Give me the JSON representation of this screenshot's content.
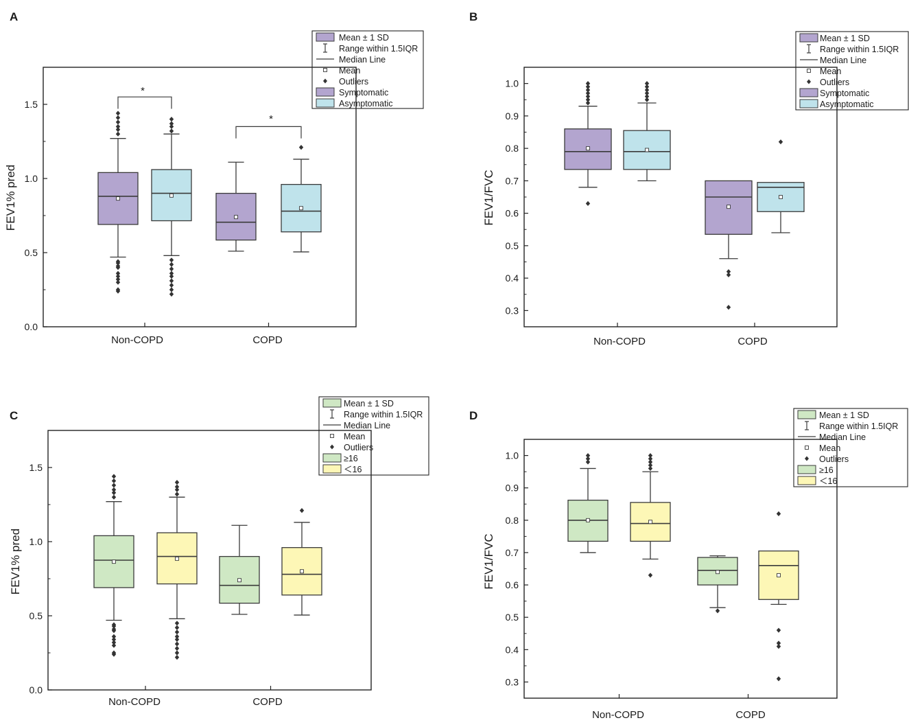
{
  "colors": {
    "symptomatic": "#b3a5cf",
    "asymptomatic": "#bfe3eb",
    "ge16": "#cfe8c4",
    "lt16": "#fdf7b6",
    "stroke": "#3a3a3a"
  },
  "chart_data": [
    {
      "panel": "A",
      "type": "box",
      "ylabel": "FEV1% pred",
      "xlabel": "",
      "categories": [
        "Non-COPD",
        "COPD"
      ],
      "ylim": [
        0,
        1.75
      ],
      "yticks": [
        0.0,
        0.5,
        1.0,
        1.5
      ],
      "ytick_labels": [
        "0.0",
        "0.5",
        "1.0",
        "1.5"
      ],
      "legend_items": [
        {
          "label": "Mean ± 1 SD",
          "kind": "box-neutral"
        },
        {
          "label": "Range within 1.5IQR",
          "kind": "whisker"
        },
        {
          "label": "Median Line",
          "kind": "line"
        },
        {
          "label": "Mean",
          "kind": "mean"
        },
        {
          "label": "Outliers",
          "kind": "outlier"
        },
        {
          "label": "Symptomatic",
          "kind": "color",
          "color": "#b3a5cf"
        },
        {
          "label": "Asymptomatic",
          "kind": "color",
          "color": "#bfe3eb"
        }
      ],
      "legend_tint": "#b3a5cf",
      "series": [
        {
          "name": "Symptomatic",
          "color": "#b3a5cf",
          "boxes": [
            {
              "q1": 0.69,
              "median": 0.88,
              "q3": 1.04,
              "wlo": 0.47,
              "whi": 1.27,
              "mean": 0.865,
              "outliers": [
                0.24,
                0.25,
                0.3,
                0.32,
                0.34,
                0.36,
                0.4,
                0.41,
                0.43,
                0.44,
                1.3,
                1.33,
                1.35,
                1.38,
                1.41,
                1.44
              ]
            },
            {
              "q1": 0.585,
              "median": 0.705,
              "q3": 0.9,
              "wlo": 0.51,
              "whi": 1.11,
              "mean": 0.74,
              "outliers": []
            }
          ]
        },
        {
          "name": "Asymptomatic",
          "color": "#bfe3eb",
          "boxes": [
            {
              "q1": 0.715,
              "median": 0.9,
              "q3": 1.06,
              "wlo": 0.48,
              "whi": 1.3,
              "mean": 0.885,
              "outliers": [
                0.22,
                0.25,
                0.28,
                0.31,
                0.34,
                0.36,
                0.39,
                0.42,
                0.45,
                1.32,
                1.35,
                1.37,
                1.4
              ]
            },
            {
              "q1": 0.64,
              "median": 0.78,
              "q3": 0.96,
              "wlo": 0.505,
              "whi": 1.13,
              "mean": 0.8,
              "outliers": [
                1.21
              ]
            }
          ]
        }
      ],
      "annotations": [
        {
          "text": "*",
          "category": 0
        },
        {
          "text": "*",
          "category": 1
        }
      ]
    },
    {
      "panel": "B",
      "type": "box",
      "ylabel": "FEV1/FVC",
      "xlabel": "",
      "categories": [
        "Non-COPD",
        "COPD"
      ],
      "ylim": [
        0.25,
        1.05
      ],
      "yticks": [
        0.3,
        0.4,
        0.5,
        0.6,
        0.7,
        0.8,
        0.9,
        1.0
      ],
      "ytick_labels": [
        "0.3",
        "0.4",
        "0.5",
        "0.6",
        "0.7",
        "0.8",
        "0.9",
        "1.0"
      ],
      "legend_items": [
        {
          "label": "Mean ± 1 SD",
          "kind": "box-neutral"
        },
        {
          "label": "Range within 1.5IQR",
          "kind": "whisker"
        },
        {
          "label": "Median Line",
          "kind": "line"
        },
        {
          "label": "Mean",
          "kind": "mean"
        },
        {
          "label": "Outliers",
          "kind": "outlier"
        },
        {
          "label": "Symptomatic",
          "kind": "color",
          "color": "#b3a5cf"
        },
        {
          "label": "Asymptomatic",
          "kind": "color",
          "color": "#bfe3eb"
        }
      ],
      "legend_tint": "#b3a5cf",
      "series": [
        {
          "name": "Symptomatic",
          "color": "#b3a5cf",
          "boxes": [
            {
              "q1": 0.735,
              "median": 0.79,
              "q3": 0.86,
              "wlo": 0.68,
              "whi": 0.93,
              "mean": 0.8,
              "outliers": [
                0.63,
                0.94,
                0.95,
                0.96,
                0.97,
                0.98,
                0.99,
                1.0
              ]
            },
            {
              "q1": 0.535,
              "median": 0.65,
              "q3": 0.7,
              "wlo": 0.46,
              "whi": 0.69,
              "mean": 0.62,
              "outliers": [
                0.31,
                0.41,
                0.42
              ]
            }
          ]
        },
        {
          "name": "Asymptomatic",
          "color": "#bfe3eb",
          "boxes": [
            {
              "q1": 0.735,
              "median": 0.79,
              "q3": 0.855,
              "wlo": 0.7,
              "whi": 0.94,
              "mean": 0.795,
              "outliers": [
                0.95,
                0.96,
                0.97,
                0.98,
                0.99,
                1.0
              ]
            },
            {
              "q1": 0.605,
              "median": 0.68,
              "q3": 0.695,
              "wlo": 0.54,
              "whi": 0.69,
              "mean": 0.65,
              "outliers": [
                0.82
              ]
            }
          ]
        }
      ],
      "annotations": []
    },
    {
      "panel": "C",
      "type": "box",
      "ylabel": "FEV1% pred",
      "xlabel": "",
      "categories": [
        "Non-COPD",
        "COPD"
      ],
      "ylim": [
        0,
        1.75
      ],
      "yticks": [
        0.0,
        0.5,
        1.0,
        1.5
      ],
      "ytick_labels": [
        "0.0",
        "0.5",
        "1.0",
        "1.5"
      ],
      "legend_items": [
        {
          "label": "Mean ± 1 SD",
          "kind": "box-neutral"
        },
        {
          "label": "Range within 1.5IQR",
          "kind": "whisker"
        },
        {
          "label": "Median Line",
          "kind": "line"
        },
        {
          "label": "Mean",
          "kind": "mean"
        },
        {
          "label": "Outliers",
          "kind": "outlier"
        },
        {
          "label": "≥16",
          "kind": "color",
          "color": "#cfe8c4"
        },
        {
          "label": "＜16",
          "kind": "color",
          "color": "#fdf7b6"
        }
      ],
      "legend_tint": "#cfe8c4",
      "series": [
        {
          "name": "≥16",
          "color": "#cfe8c4",
          "boxes": [
            {
              "q1": 0.69,
              "median": 0.875,
              "q3": 1.04,
              "wlo": 0.47,
              "whi": 1.27,
              "mean": 0.865,
              "outliers": [
                0.24,
                0.25,
                0.3,
                0.32,
                0.34,
                0.36,
                0.4,
                0.41,
                0.43,
                0.44,
                1.3,
                1.33,
                1.35,
                1.38,
                1.41,
                1.44
              ]
            },
            {
              "q1": 0.585,
              "median": 0.705,
              "q3": 0.9,
              "wlo": 0.51,
              "whi": 1.11,
              "mean": 0.74,
              "outliers": []
            }
          ]
        },
        {
          "name": "＜16",
          "color": "#fdf7b6",
          "boxes": [
            {
              "q1": 0.715,
              "median": 0.9,
              "q3": 1.06,
              "wlo": 0.48,
              "whi": 1.3,
              "mean": 0.885,
              "outliers": [
                0.22,
                0.25,
                0.28,
                0.31,
                0.34,
                0.36,
                0.39,
                0.42,
                0.45,
                1.32,
                1.35,
                1.37,
                1.4
              ]
            },
            {
              "q1": 0.64,
              "median": 0.78,
              "q3": 0.96,
              "wlo": 0.505,
              "whi": 1.13,
              "mean": 0.8,
              "outliers": [
                1.21
              ]
            }
          ]
        }
      ],
      "annotations": []
    },
    {
      "panel": "D",
      "type": "box",
      "ylabel": "FEV1/FVC",
      "xlabel": "",
      "categories": [
        "Non-COPD",
        "COPD"
      ],
      "ylim": [
        0.25,
        1.05
      ],
      "yticks": [
        0.3,
        0.4,
        0.5,
        0.6,
        0.7,
        0.8,
        0.9,
        1.0
      ],
      "ytick_labels": [
        "0.3",
        "0.4",
        "0.5",
        "0.6",
        "0.7",
        "0.8",
        "0.9",
        "1.0"
      ],
      "legend_items": [
        {
          "label": "Mean ± 1 SD",
          "kind": "box-neutral"
        },
        {
          "label": "Range within 1.5IQR",
          "kind": "whisker"
        },
        {
          "label": "Median Line",
          "kind": "line"
        },
        {
          "label": "Mean",
          "kind": "mean"
        },
        {
          "label": "Outliers",
          "kind": "outlier"
        },
        {
          "label": "≥16",
          "kind": "color",
          "color": "#cfe8c4"
        },
        {
          "label": "＜16",
          "kind": "color",
          "color": "#fdf7b6"
        }
      ],
      "legend_tint": "#cfe8c4",
      "series": [
        {
          "name": "≥16",
          "color": "#cfe8c4",
          "boxes": [
            {
              "q1": 0.735,
              "median": 0.8,
              "q3": 0.862,
              "wlo": 0.7,
              "whi": 0.96,
              "mean": 0.8,
              "outliers": [
                0.98,
                0.99,
                1.0
              ]
            },
            {
              "q1": 0.6,
              "median": 0.645,
              "q3": 0.685,
              "wlo": 0.53,
              "whi": 0.69,
              "mean": 0.64,
              "outliers": [
                0.52
              ]
            }
          ]
        },
        {
          "name": "＜16",
          "color": "#fdf7b6",
          "boxes": [
            {
              "q1": 0.735,
              "median": 0.79,
              "q3": 0.855,
              "wlo": 0.68,
              "whi": 0.95,
              "mean": 0.795,
              "outliers": [
                0.63,
                0.96,
                0.97,
                0.98,
                0.99,
                1.0
              ]
            },
            {
              "q1": 0.555,
              "median": 0.66,
              "q3": 0.705,
              "wlo": 0.54,
              "whi": 0.69,
              "mean": 0.63,
              "outliers": [
                0.31,
                0.41,
                0.42,
                0.46,
                0.82
              ]
            }
          ]
        }
      ],
      "annotations": []
    }
  ]
}
